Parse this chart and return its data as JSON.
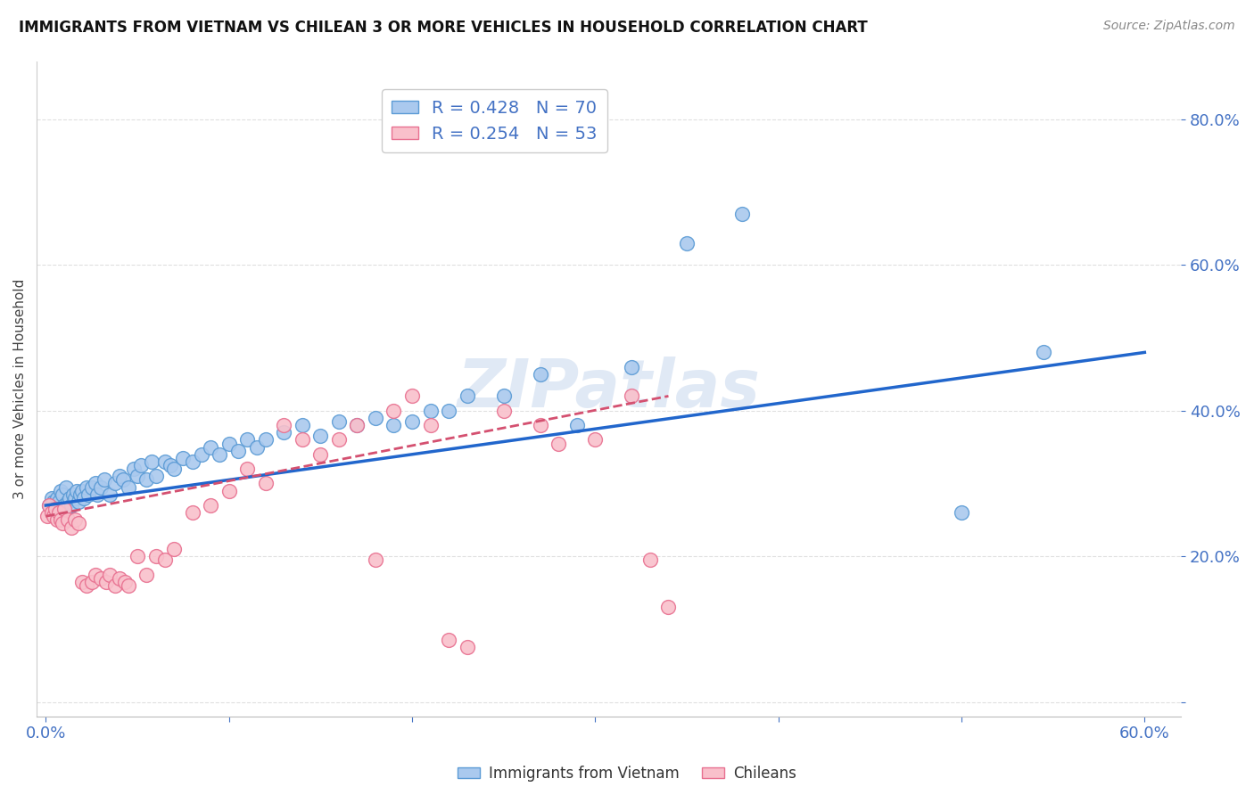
{
  "title": "IMMIGRANTS FROM VIETNAM VS CHILEAN 3 OR MORE VEHICLES IN HOUSEHOLD CORRELATION CHART",
  "source": "Source: ZipAtlas.com",
  "ylabel": "3 or more Vehicles in Household",
  "ylim": [
    -0.02,
    0.88
  ],
  "xlim": [
    -0.005,
    0.62
  ],
  "yticks": [
    0.0,
    0.2,
    0.4,
    0.6,
    0.8
  ],
  "ytick_labels": [
    "",
    "20.0%",
    "40.0%",
    "60.0%",
    "80.0%"
  ],
  "xticks": [
    0.0,
    0.1,
    0.2,
    0.3,
    0.4,
    0.5,
    0.6
  ],
  "xtick_labels": [
    "0.0%",
    "",
    "",
    "",
    "",
    "",
    "60.0%"
  ],
  "vietnam_color": "#aac9ee",
  "vietnam_edge_color": "#5b9bd5",
  "chilean_color": "#f9c0cb",
  "chilean_edge_color": "#e87090",
  "trend_vietnam_color": "#2166cc",
  "trend_chilean_color": "#d45070",
  "legend_vietnam_R": "0.428",
  "legend_vietnam_N": "70",
  "legend_chilean_R": "0.254",
  "legend_chilean_N": "53",
  "vietnam_x": [
    0.002,
    0.003,
    0.004,
    0.005,
    0.006,
    0.007,
    0.008,
    0.009,
    0.01,
    0.011,
    0.012,
    0.013,
    0.014,
    0.015,
    0.016,
    0.017,
    0.018,
    0.019,
    0.02,
    0.021,
    0.022,
    0.023,
    0.025,
    0.027,
    0.028,
    0.03,
    0.032,
    0.035,
    0.038,
    0.04,
    0.042,
    0.045,
    0.048,
    0.05,
    0.052,
    0.055,
    0.058,
    0.06,
    0.065,
    0.068,
    0.07,
    0.075,
    0.08,
    0.085,
    0.09,
    0.095,
    0.1,
    0.105,
    0.11,
    0.115,
    0.12,
    0.13,
    0.14,
    0.15,
    0.16,
    0.17,
    0.18,
    0.19,
    0.2,
    0.21,
    0.22,
    0.23,
    0.25,
    0.27,
    0.29,
    0.32,
    0.35,
    0.38,
    0.5,
    0.545
  ],
  "vietnam_y": [
    0.27,
    0.28,
    0.275,
    0.265,
    0.28,
    0.275,
    0.29,
    0.285,
    0.27,
    0.295,
    0.275,
    0.28,
    0.27,
    0.285,
    0.28,
    0.29,
    0.275,
    0.285,
    0.29,
    0.28,
    0.295,
    0.285,
    0.295,
    0.3,
    0.285,
    0.295,
    0.305,
    0.285,
    0.3,
    0.31,
    0.305,
    0.295,
    0.32,
    0.31,
    0.325,
    0.305,
    0.33,
    0.31,
    0.33,
    0.325,
    0.32,
    0.335,
    0.33,
    0.34,
    0.35,
    0.34,
    0.355,
    0.345,
    0.36,
    0.35,
    0.36,
    0.37,
    0.38,
    0.365,
    0.385,
    0.38,
    0.39,
    0.38,
    0.385,
    0.4,
    0.4,
    0.42,
    0.42,
    0.45,
    0.38,
    0.46,
    0.63,
    0.67,
    0.26,
    0.48
  ],
  "chilean_x": [
    0.001,
    0.002,
    0.003,
    0.004,
    0.005,
    0.006,
    0.007,
    0.008,
    0.009,
    0.01,
    0.012,
    0.014,
    0.016,
    0.018,
    0.02,
    0.022,
    0.025,
    0.027,
    0.03,
    0.033,
    0.035,
    0.038,
    0.04,
    0.043,
    0.045,
    0.05,
    0.055,
    0.06,
    0.065,
    0.07,
    0.08,
    0.09,
    0.1,
    0.11,
    0.12,
    0.13,
    0.14,
    0.15,
    0.16,
    0.17,
    0.18,
    0.19,
    0.2,
    0.21,
    0.22,
    0.23,
    0.25,
    0.27,
    0.28,
    0.3,
    0.32,
    0.33,
    0.34
  ],
  "chilean_y": [
    0.255,
    0.27,
    0.26,
    0.255,
    0.265,
    0.25,
    0.26,
    0.25,
    0.245,
    0.265,
    0.25,
    0.24,
    0.25,
    0.245,
    0.165,
    0.16,
    0.165,
    0.175,
    0.17,
    0.165,
    0.175,
    0.16,
    0.17,
    0.165,
    0.16,
    0.2,
    0.175,
    0.2,
    0.195,
    0.21,
    0.26,
    0.27,
    0.29,
    0.32,
    0.3,
    0.38,
    0.36,
    0.34,
    0.36,
    0.38,
    0.195,
    0.4,
    0.42,
    0.38,
    0.085,
    0.075,
    0.4,
    0.38,
    0.355,
    0.36,
    0.42,
    0.195,
    0.13
  ],
  "trend_vietnam_x_start": 0.0,
  "trend_vietnam_x_end": 0.6,
  "trend_vietnam_y_start": 0.27,
  "trend_vietnam_y_end": 0.48,
  "trend_chilean_x_start": 0.0,
  "trend_chilean_x_end": 0.34,
  "trend_chilean_y_start": 0.255,
  "trend_chilean_y_end": 0.42,
  "axis_color": "#4472c4",
  "grid_color": "#e0e0e0",
  "watermark": "ZIPatlas",
  "watermark_color": "#c8d8ee"
}
